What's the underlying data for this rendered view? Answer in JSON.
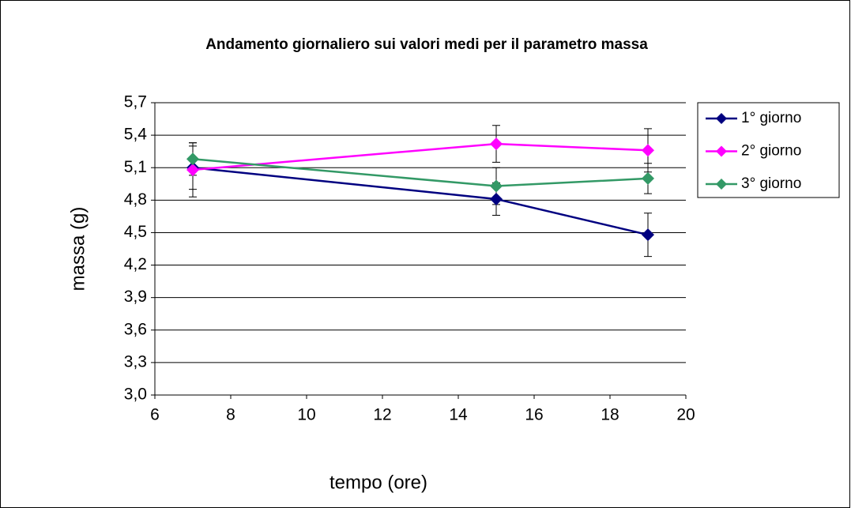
{
  "chart_data": {
    "type": "line",
    "title": "Andamento giornaliero sui valori medi per il parametro massa",
    "x_label": "tempo (ore)",
    "y_label": "massa (g)",
    "x": [
      7,
      15,
      19
    ],
    "series": [
      {
        "name": "1° giorno",
        "color": "#000080",
        "values": [
          5.1,
          4.81,
          4.48
        ],
        "errors": [
          0.2,
          0.15,
          0.2
        ]
      },
      {
        "name": "2° giorno",
        "color": "#ff00ff",
        "values": [
          5.08,
          5.32,
          5.26
        ],
        "errors": [
          0.25,
          0.17,
          0.2
        ]
      },
      {
        "name": "3° giorno",
        "color": "#339966",
        "values": [
          5.18,
          4.93,
          5.0
        ],
        "errors": [
          0.15,
          0.17,
          0.14
        ]
      }
    ],
    "xlim": [
      6,
      20
    ],
    "xticks": [
      6,
      8,
      10,
      12,
      14,
      16,
      18,
      20
    ],
    "ylim": [
      3.0,
      5.7
    ],
    "yticks": [
      {
        "value": 3.0,
        "label": "3,0"
      },
      {
        "value": 3.3,
        "label": "3,3"
      },
      {
        "value": 3.6,
        "label": "3,6"
      },
      {
        "value": 3.9,
        "label": "3,9"
      },
      {
        "value": 4.2,
        "label": "4,2"
      },
      {
        "value": 4.5,
        "label": "4,5"
      },
      {
        "value": 4.8,
        "label": "4,8"
      },
      {
        "value": 5.1,
        "label": "5,1"
      },
      {
        "value": 5.4,
        "label": "5,4"
      },
      {
        "value": 5.7,
        "label": "5,7"
      }
    ],
    "grid": true,
    "legend": "right"
  }
}
